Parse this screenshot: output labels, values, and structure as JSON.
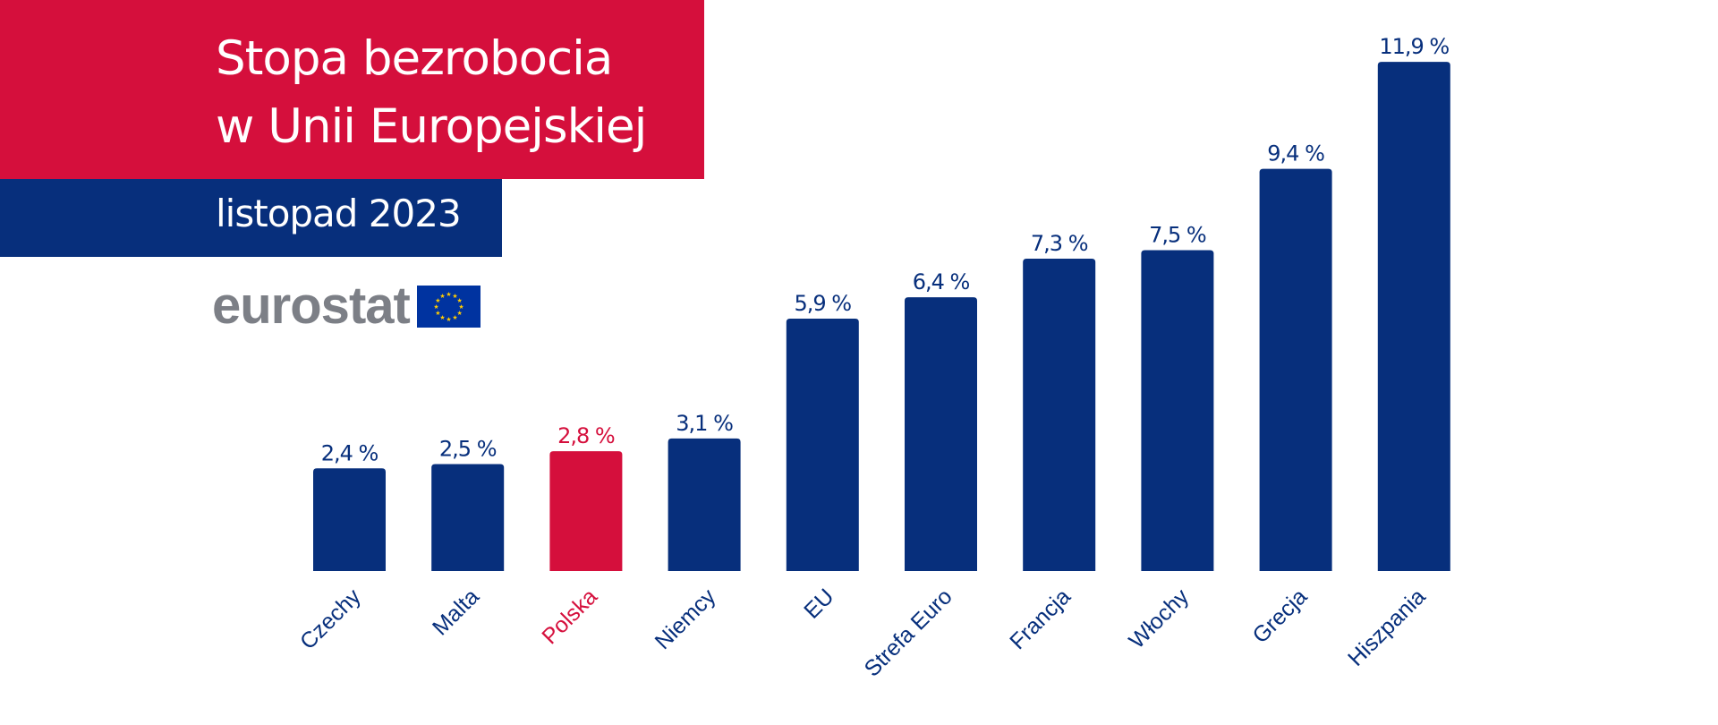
{
  "header": {
    "title_line1": "Stopa bezrobocia",
    "title_line2": "w Unii Europejskiej",
    "subtitle": "listopad 2023",
    "logo": "eurostat",
    "flag_icon": "eu-flag-icon"
  },
  "colors": {
    "red": "#d50f3c",
    "blue": "#072f7c",
    "logo_gray": "#7c7f86",
    "star": "#ffcc00"
  },
  "chart_data": {
    "type": "bar",
    "categories": [
      "Czechy",
      "Malta",
      "Polska",
      "Niemcy",
      "EU",
      "Strefa Euro",
      "Francja",
      "Włochy",
      "Grecja",
      "Hiszpania"
    ],
    "values": [
      2.4,
      2.5,
      2.8,
      3.1,
      5.9,
      6.4,
      7.3,
      7.5,
      9.4,
      11.9
    ],
    "value_labels": [
      "2,4 %",
      "2,5 %",
      "2,8 %",
      "3,1 %",
      "5,9 %",
      "6,4 %",
      "7,3 %",
      "7,5 %",
      "9,4 %",
      "11,9 %"
    ],
    "highlight": "Polska",
    "ylim": [
      0,
      11.9
    ],
    "grid": false,
    "title": "Stopa bezrobocia w Unii Europejskiej",
    "subtitle": "listopad 2023"
  }
}
